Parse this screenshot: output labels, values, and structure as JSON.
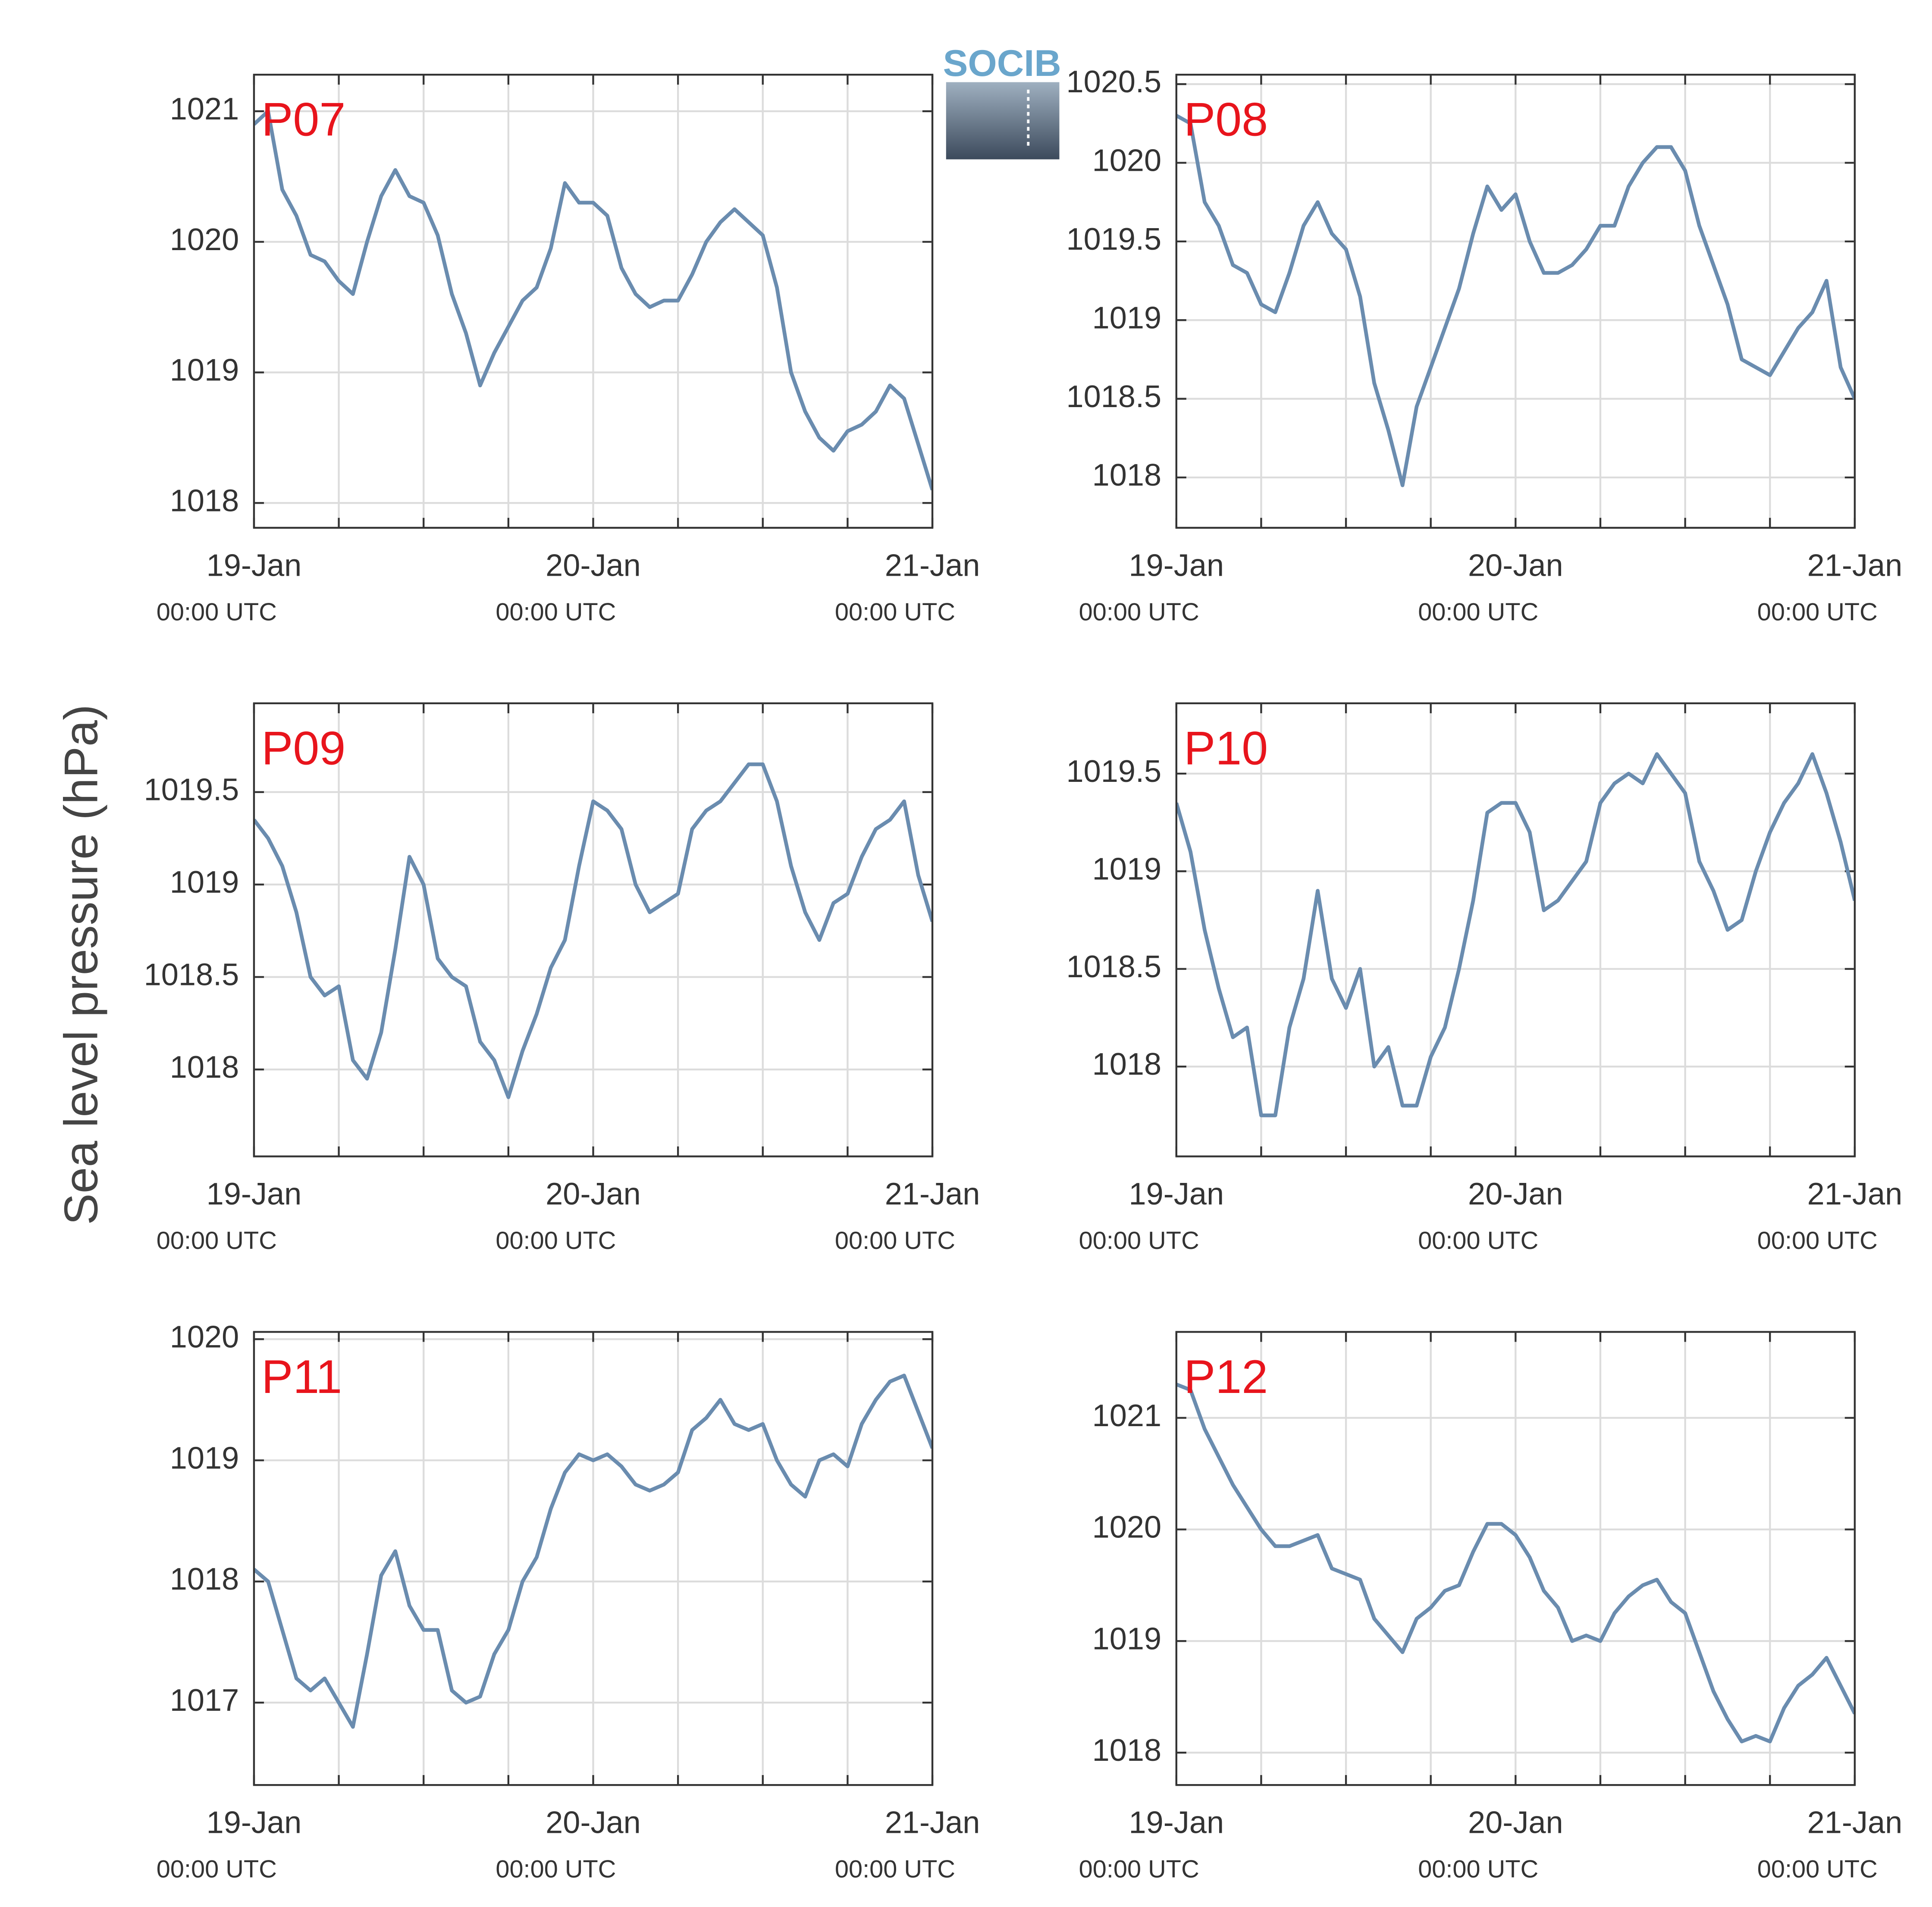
{
  "ylabel": "Sea level pressure (hPa)",
  "logo": "SOCIB",
  "chart_data": [
    {
      "type": "line",
      "title": "P07",
      "color": "#6a8caf",
      "x": [
        0,
        1,
        2,
        3,
        4,
        5,
        6,
        7,
        8,
        9,
        10,
        11,
        12,
        13,
        14,
        15,
        16,
        17,
        18,
        19,
        20,
        21,
        22,
        23,
        24,
        25,
        26,
        27,
        28,
        29,
        30,
        31,
        32,
        33,
        34,
        35,
        36,
        37,
        38,
        39,
        40,
        41,
        42,
        43,
        44,
        45,
        46,
        47,
        48
      ],
      "values": [
        1020.9,
        1021.0,
        1020.4,
        1020.2,
        1019.9,
        1019.85,
        1019.7,
        1019.6,
        1020.0,
        1020.35,
        1020.55,
        1020.35,
        1020.3,
        1020.05,
        1019.6,
        1019.3,
        1018.9,
        1019.15,
        1019.35,
        1019.55,
        1019.65,
        1019.95,
        1020.45,
        1020.3,
        1020.3,
        1020.2,
        1019.8,
        1019.6,
        1019.5,
        1019.55,
        1019.55,
        1019.75,
        1020.0,
        1020.15,
        1020.25,
        1020.15,
        1020.05,
        1019.65,
        1019.0,
        1018.7,
        1018.5,
        1018.4,
        1018.55,
        1018.6,
        1018.7,
        1018.9,
        1018.8,
        1018.45,
        1018.1
      ],
      "xlim": [
        0,
        48
      ],
      "xticks": [
        {
          "value": 0,
          "label": "19-Jan",
          "sublabel": "00:00 UTC"
        },
        {
          "value": 24,
          "label": "20-Jan",
          "sublabel": "00:00 UTC"
        },
        {
          "value": 48,
          "label": "21-Jan",
          "sublabel": "00:00 UTC"
        }
      ],
      "xminor": [
        6,
        12,
        18,
        30,
        36,
        42
      ],
      "ylim": [
        1017.81,
        1021.28
      ],
      "yticks": [
        1018,
        1019,
        1020,
        1021
      ],
      "grid": true
    },
    {
      "type": "line",
      "title": "P08",
      "color": "#6a8caf",
      "x": [
        0,
        1,
        2,
        3,
        4,
        5,
        6,
        7,
        8,
        9,
        10,
        11,
        12,
        13,
        14,
        15,
        16,
        17,
        18,
        19,
        20,
        21,
        22,
        23,
        24,
        25,
        26,
        27,
        28,
        29,
        30,
        31,
        32,
        33,
        34,
        35,
        36,
        37,
        38,
        39,
        40,
        41,
        42,
        43,
        44,
        45,
        46,
        47,
        48
      ],
      "values": [
        1020.3,
        1020.25,
        1019.75,
        1019.6,
        1019.35,
        1019.3,
        1019.1,
        1019.05,
        1019.3,
        1019.6,
        1019.75,
        1019.55,
        1019.45,
        1019.15,
        1018.6,
        1018.3,
        1017.95,
        1018.45,
        1018.7,
        1018.95,
        1019.2,
        1019.55,
        1019.85,
        1019.7,
        1019.8,
        1019.5,
        1019.3,
        1019.3,
        1019.35,
        1019.45,
        1019.6,
        1019.6,
        1019.85,
        1020.0,
        1020.1,
        1020.1,
        1019.95,
        1019.6,
        1019.35,
        1019.1,
        1018.75,
        1018.7,
        1018.65,
        1018.8,
        1018.95,
        1019.05,
        1019.25,
        1018.7,
        1018.5
      ],
      "xlim": [
        0,
        48
      ],
      "xticks": [
        {
          "value": 0,
          "label": "19-Jan",
          "sublabel": "00:00 UTC"
        },
        {
          "value": 24,
          "label": "20-Jan",
          "sublabel": "00:00 UTC"
        },
        {
          "value": 48,
          "label": "21-Jan",
          "sublabel": "00:00 UTC"
        }
      ],
      "xminor": [
        6,
        12,
        18,
        30,
        36,
        42
      ],
      "ylim": [
        1017.68,
        1020.56
      ],
      "yticks": [
        1018,
        1018.5,
        1019,
        1019.5,
        1020,
        1020.5
      ],
      "grid": true
    },
    {
      "type": "line",
      "title": "P09",
      "color": "#6a8caf",
      "x": [
        0,
        1,
        2,
        3,
        4,
        5,
        6,
        7,
        8,
        9,
        10,
        11,
        12,
        13,
        14,
        15,
        16,
        17,
        18,
        19,
        20,
        21,
        22,
        23,
        24,
        25,
        26,
        27,
        28,
        29,
        30,
        31,
        32,
        33,
        34,
        35,
        36,
        37,
        38,
        39,
        40,
        41,
        42,
        43,
        44,
        45,
        46,
        47,
        48
      ],
      "values": [
        1019.35,
        1019.25,
        1019.1,
        1018.85,
        1018.5,
        1018.4,
        1018.45,
        1018.05,
        1017.95,
        1018.2,
        1018.65,
        1019.15,
        1019.0,
        1018.6,
        1018.5,
        1018.45,
        1018.15,
        1018.05,
        1017.85,
        1018.1,
        1018.3,
        1018.55,
        1018.7,
        1019.1,
        1019.45,
        1019.4,
        1019.3,
        1019.0,
        1018.85,
        1018.9,
        1018.95,
        1019.3,
        1019.4,
        1019.45,
        1019.55,
        1019.65,
        1019.65,
        1019.45,
        1019.1,
        1018.85,
        1018.7,
        1018.9,
        1018.95,
        1019.15,
        1019.3,
        1019.35,
        1019.45,
        1019.05,
        1018.8
      ],
      "xlim": [
        0,
        48
      ],
      "xticks": [
        {
          "value": 0,
          "label": "19-Jan",
          "sublabel": "00:00 UTC"
        },
        {
          "value": 24,
          "label": "20-Jan",
          "sublabel": "00:00 UTC"
        },
        {
          "value": 48,
          "label": "21-Jan",
          "sublabel": "00:00 UTC"
        }
      ],
      "xminor": [
        6,
        12,
        18,
        30,
        36,
        42
      ],
      "ylim": [
        1017.53,
        1019.98
      ],
      "yticks": [
        1018,
        1018.5,
        1019,
        1019.5
      ],
      "grid": true
    },
    {
      "type": "line",
      "title": "P10",
      "color": "#6a8caf",
      "x": [
        0,
        1,
        2,
        3,
        4,
        5,
        6,
        7,
        8,
        9,
        10,
        11,
        12,
        13,
        14,
        15,
        16,
        17,
        18,
        19,
        20,
        21,
        22,
        23,
        24,
        25,
        26,
        27,
        28,
        29,
        30,
        31,
        32,
        33,
        34,
        35,
        36,
        37,
        38,
        39,
        40,
        41,
        42,
        43,
        44,
        45,
        46,
        47,
        48
      ],
      "values": [
        1019.35,
        1019.1,
        1018.7,
        1018.4,
        1018.15,
        1018.2,
        1017.75,
        1017.75,
        1018.2,
        1018.45,
        1018.9,
        1018.45,
        1018.3,
        1018.5,
        1018.0,
        1018.1,
        1017.8,
        1017.8,
        1018.05,
        1018.2,
        1018.5,
        1018.85,
        1019.3,
        1019.35,
        1019.35,
        1019.2,
        1018.8,
        1018.85,
        1018.95,
        1019.05,
        1019.35,
        1019.45,
        1019.5,
        1019.45,
        1019.6,
        1019.5,
        1019.4,
        1019.05,
        1018.9,
        1018.7,
        1018.75,
        1019.0,
        1019.2,
        1019.35,
        1019.45,
        1019.6,
        1019.4,
        1019.15,
        1018.85
      ],
      "xlim": [
        0,
        48
      ],
      "xticks": [
        {
          "value": 0,
          "label": "19-Jan",
          "sublabel": "00:00 UTC"
        },
        {
          "value": 24,
          "label": "20-Jan",
          "sublabel": "00:00 UTC"
        },
        {
          "value": 48,
          "label": "21-Jan",
          "sublabel": "00:00 UTC"
        }
      ],
      "xminor": [
        6,
        12,
        18,
        30,
        36,
        42
      ],
      "ylim": [
        1017.54,
        1019.86
      ],
      "yticks": [
        1018,
        1018.5,
        1019,
        1019.5
      ],
      "grid": true
    },
    {
      "type": "line",
      "title": "P11",
      "color": "#6a8caf",
      "x": [
        0,
        1,
        2,
        3,
        4,
        5,
        6,
        7,
        8,
        9,
        10,
        11,
        12,
        13,
        14,
        15,
        16,
        17,
        18,
        19,
        20,
        21,
        22,
        23,
        24,
        25,
        26,
        27,
        28,
        29,
        30,
        31,
        32,
        33,
        34,
        35,
        36,
        37,
        38,
        39,
        40,
        41,
        42,
        43,
        44,
        45,
        46,
        47,
        48
      ],
      "values": [
        1018.1,
        1018.0,
        1017.6,
        1017.2,
        1017.1,
        1017.2,
        1017.0,
        1016.8,
        1017.4,
        1018.05,
        1018.25,
        1017.8,
        1017.6,
        1017.6,
        1017.1,
        1017.0,
        1017.05,
        1017.4,
        1017.6,
        1018.0,
        1018.2,
        1018.6,
        1018.9,
        1019.05,
        1019.0,
        1019.05,
        1018.95,
        1018.8,
        1018.75,
        1018.8,
        1018.9,
        1019.25,
        1019.35,
        1019.5,
        1019.3,
        1019.25,
        1019.3,
        1019.0,
        1018.8,
        1018.7,
        1019.0,
        1019.05,
        1018.95,
        1019.3,
        1019.5,
        1019.65,
        1019.7,
        1019.4,
        1019.1
      ],
      "xlim": [
        0,
        48
      ],
      "xticks": [
        {
          "value": 0,
          "label": "19-Jan",
          "sublabel": "00:00 UTC"
        },
        {
          "value": 24,
          "label": "20-Jan",
          "sublabel": "00:00 UTC"
        },
        {
          "value": 48,
          "label": "21-Jan",
          "sublabel": "00:00 UTC"
        }
      ],
      "xminor": [
        6,
        12,
        18,
        30,
        36,
        42
      ],
      "ylim": [
        1016.32,
        1020.06
      ],
      "yticks": [
        1017,
        1018,
        1019,
        1020
      ],
      "grid": true
    },
    {
      "type": "line",
      "title": "P12",
      "color": "#6a8caf",
      "x": [
        0,
        1,
        2,
        3,
        4,
        5,
        6,
        7,
        8,
        9,
        10,
        11,
        12,
        13,
        14,
        15,
        16,
        17,
        18,
        19,
        20,
        21,
        22,
        23,
        24,
        25,
        26,
        27,
        28,
        29,
        30,
        31,
        32,
        33,
        34,
        35,
        36,
        37,
        38,
        39,
        40,
        41,
        42,
        43,
        44,
        45,
        46,
        47,
        48
      ],
      "values": [
        1021.3,
        1021.25,
        1020.9,
        1020.65,
        1020.4,
        1020.2,
        1020.0,
        1019.85,
        1019.85,
        1019.9,
        1019.95,
        1019.65,
        1019.6,
        1019.55,
        1019.2,
        1019.05,
        1018.9,
        1019.2,
        1019.3,
        1019.45,
        1019.5,
        1019.8,
        1020.05,
        1020.05,
        1019.95,
        1019.75,
        1019.45,
        1019.3,
        1019.0,
        1019.05,
        1019.0,
        1019.25,
        1019.4,
        1019.5,
        1019.55,
        1019.35,
        1019.25,
        1018.9,
        1018.55,
        1018.3,
        1018.1,
        1018.15,
        1018.1,
        1018.4,
        1018.6,
        1018.7,
        1018.85,
        1018.6,
        1018.35
      ],
      "xlim": [
        0,
        48
      ],
      "xticks": [
        {
          "value": 0,
          "label": "19-Jan",
          "sublabel": "00:00 UTC"
        },
        {
          "value": 24,
          "label": "20-Jan",
          "sublabel": "00:00 UTC"
        },
        {
          "value": 48,
          "label": "21-Jan",
          "sublabel": "00:00 UTC"
        }
      ],
      "xminor": [
        6,
        12,
        18,
        30,
        36,
        42
      ],
      "ylim": [
        1017.71,
        1021.77
      ],
      "yticks": [
        1018,
        1019,
        1020,
        1021
      ],
      "grid": true
    }
  ]
}
